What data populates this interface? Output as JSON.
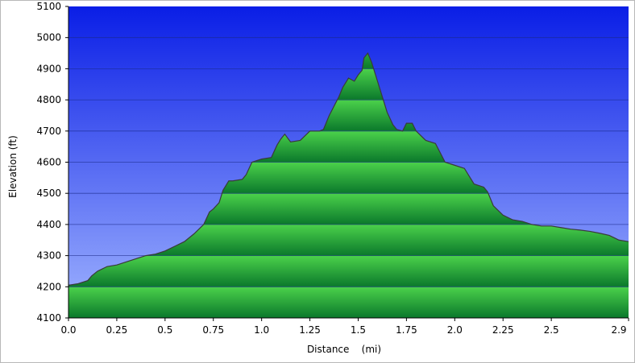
{
  "chart_data": {
    "type": "area",
    "title": "",
    "xlabel": "Distance    (mi)",
    "ylabel": "Elevation (ft)",
    "xlim": [
      0,
      2.9
    ],
    "ylim": [
      4100,
      5100
    ],
    "x_ticks": [
      0,
      0.25,
      0.5,
      0.75,
      1.0,
      1.25,
      1.5,
      1.75,
      2.0,
      2.25,
      2.5,
      2.9
    ],
    "x_tick_labels": [
      "0.0",
      "0.25",
      "0.5",
      "0.75",
      "1.0",
      "1.25",
      "1.5",
      "1.75",
      "2.0",
      "2.25",
      "2.5",
      "2.9"
    ],
    "y_ticks": [
      4100,
      4200,
      4300,
      4400,
      4500,
      4600,
      4700,
      4800,
      4900,
      5000,
      5100
    ],
    "y_tick_labels": [
      "4100",
      "4200",
      "4300",
      "4400",
      "4500",
      "4600",
      "4700",
      "4800",
      "4900",
      "5000",
      "5100"
    ],
    "grid": true,
    "legend": "none",
    "colors": {
      "sky_top": "#0a1ee6",
      "sky_bottom": "#a0b4ff",
      "fill_light": "#4ad04a",
      "fill_dark": "#0c7a2c",
      "profile_line": "#3a3a3a",
      "grid": "#1a2a8a"
    },
    "series": [
      {
        "x": [
          0.0,
          0.05,
          0.1,
          0.12,
          0.15,
          0.2,
          0.25,
          0.3,
          0.35,
          0.4,
          0.45,
          0.5,
          0.55,
          0.6,
          0.65,
          0.7,
          0.73,
          0.75,
          0.78,
          0.8,
          0.83,
          0.85,
          0.9,
          0.92,
          0.95,
          1.0,
          1.05,
          1.08,
          1.1,
          1.12,
          1.15,
          1.2,
          1.25,
          1.3,
          1.32,
          1.35,
          1.4,
          1.42,
          1.45,
          1.48,
          1.5,
          1.52,
          1.53,
          1.55,
          1.57,
          1.6,
          1.63,
          1.65,
          1.68,
          1.7,
          1.73,
          1.75,
          1.78,
          1.8,
          1.85,
          1.9,
          1.95,
          2.0,
          2.05,
          2.1,
          2.15,
          2.17,
          2.2,
          2.25,
          2.3,
          2.35,
          2.4,
          2.45,
          2.5,
          2.55,
          2.6,
          2.65,
          2.7,
          2.75,
          2.8,
          2.85,
          2.9
        ],
        "y": [
          4205,
          4210,
          4220,
          4235,
          4250,
          4265,
          4270,
          4280,
          4290,
          4300,
          4305,
          4315,
          4330,
          4345,
          4370,
          4400,
          4440,
          4450,
          4470,
          4510,
          4540,
          4540,
          4545,
          4560,
          4600,
          4610,
          4615,
          4655,
          4675,
          4690,
          4665,
          4670,
          4700,
          4700,
          4705,
          4750,
          4810,
          4840,
          4870,
          4860,
          4880,
          4895,
          4935,
          4950,
          4920,
          4860,
          4800,
          4760,
          4720,
          4705,
          4700,
          4725,
          4725,
          4700,
          4670,
          4660,
          4600,
          4590,
          4580,
          4530,
          4520,
          4505,
          4460,
          4430,
          4415,
          4410,
          4400,
          4395,
          4395,
          4390,
          4385,
          4382,
          4378,
          4372,
          4365,
          4350,
          4345
        ]
      }
    ]
  }
}
